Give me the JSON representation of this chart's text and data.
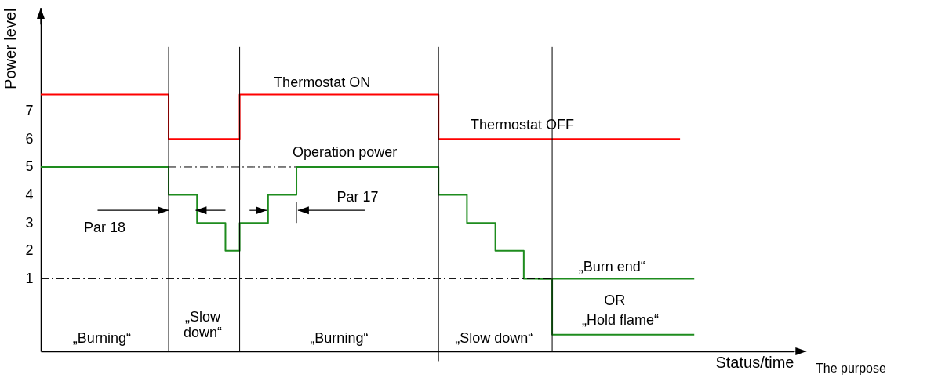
{
  "chart_data": {
    "type": "step",
    "ylabel": "Power level",
    "xlabel": "Status/time",
    "categories": [
      null,
      null,
      null,
      null,
      null,
      null,
      null,
      null,
      null,
      null,
      null,
      null,
      null,
      null,
      null,
      null,
      null,
      null,
      null,
      null,
      null,
      null,
      null,
      null,
      null,
      null,
      null,
      null,
      null,
      null,
      null,
      null,
      null,
      null,
      null,
      null,
      null,
      null,
      null,
      null,
      null,
      null,
      null,
      null,
      null,
      null,
      null
    ],
    "ylim": [
      -1.6,
      10.7
    ],
    "yticks": [
      1,
      2,
      3,
      4,
      5,
      6,
      7
    ],
    "tick_labels": "y",
    "grid": false,
    "series": [
      {
        "color": "#ff0000",
        "values": [
          7.6,
          7.6,
          7.6,
          7.6,
          7.6,
          7.6,
          7.6,
          7.6,
          7.6,
          6,
          6,
          6,
          6,
          6,
          7.6,
          7.6,
          7.6,
          7.6,
          7.6,
          7.6,
          7.6,
          7.6,
          7.6,
          7.6,
          7.6,
          7.6,
          7.6,
          7.6,
          6,
          6,
          6,
          6,
          6,
          6,
          6,
          6,
          6,
          6,
          6,
          6,
          6,
          6,
          6,
          6,
          6,
          6,
          null
        ]
      },
      {
        "color": "#1e8c1e",
        "values": [
          5,
          5,
          5,
          5,
          5,
          5,
          5,
          5,
          5,
          4,
          4,
          3,
          3,
          2,
          3,
          3,
          4,
          4,
          5,
          5,
          5,
          5,
          5,
          5,
          5,
          5,
          5,
          5,
          4,
          4,
          3,
          3,
          2,
          2,
          1,
          1,
          1,
          1,
          1,
          1,
          1,
          1,
          1,
          1,
          1,
          1,
          1
        ]
      },
      {
        "color": "#1e8c1e",
        "values": [
          null,
          null,
          null,
          null,
          null,
          null,
          null,
          null,
          null,
          null,
          null,
          null,
          null,
          null,
          null,
          null,
          null,
          null,
          null,
          null,
          null,
          null,
          null,
          null,
          null,
          null,
          null,
          null,
          null,
          null,
          null,
          null,
          null,
          null,
          null,
          1,
          -1,
          -1,
          -1,
          -1,
          -1,
          -1,
          -1,
          -1,
          -1,
          -1,
          -1
        ]
      },
      {
        "type": "line",
        "color": "#000000",
        "line_style": "dashed",
        "values": [
          null,
          null,
          null,
          null,
          null,
          null,
          null,
          null,
          null,
          5,
          5,
          5,
          5,
          5,
          5,
          5,
          5,
          5,
          5,
          null,
          null,
          null,
          null,
          null,
          null,
          null,
          null,
          null,
          null,
          null,
          null,
          null,
          null,
          null,
          null,
          null,
          null,
          null,
          null,
          null,
          null,
          null,
          null,
          null,
          null,
          null,
          null
        ]
      },
      {
        "type": "line",
        "color": "#000000",
        "line_style": "dashed",
        "values": [
          1,
          1,
          1,
          1,
          1,
          1,
          1,
          1,
          1,
          1,
          1,
          1,
          1,
          1,
          1,
          1,
          1,
          1,
          1,
          1,
          1,
          1,
          1,
          1,
          1,
          1,
          1,
          1,
          1,
          1,
          1,
          1,
          1,
          1,
          1,
          1,
          1,
          null,
          null,
          null,
          null,
          null,
          null,
          null,
          null,
          null,
          null
        ]
      }
    ],
    "annotations": [
      "Thermostat ON",
      "Thermostat OFF",
      "Operation power",
      "Par 18",
      "Par 17",
      "„Burn end“",
      "OR",
      "„Hold flame“",
      "„Burning“",
      "„Slow\ndown“",
      "„Burning“",
      "„Slow down“",
      "The purpose"
    ]
  }
}
